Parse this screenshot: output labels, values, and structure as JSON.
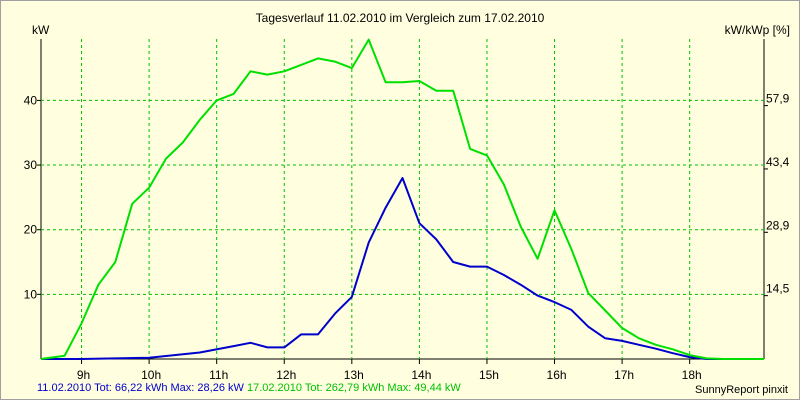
{
  "chart_data": {
    "type": "line",
    "title": "Tagesverlauf 11.02.2010 im Vergleich zum 17.02.2010",
    "ylabel_left": "kW",
    "ylabel_right": "kW/kWp [%]",
    "x_ticks": [
      "9h",
      "10h",
      "11h",
      "12h",
      "13h",
      "14h",
      "15h",
      "16h",
      "17h",
      "18h"
    ],
    "x_tick_hours": [
      9,
      10,
      11,
      12,
      13,
      14,
      15,
      16,
      17,
      18
    ],
    "xlim": [
      8.4,
      19.1
    ],
    "ylim": [
      0,
      49.5
    ],
    "y_ticks_left": [
      10,
      20,
      30,
      40
    ],
    "y_ticks_right": [
      {
        "value": 9.8,
        "label": "14,5"
      },
      {
        "value": 19.6,
        "label": "28,9"
      },
      {
        "value": 29.4,
        "label": "43,4"
      },
      {
        "value": 39.2,
        "label": "57,9"
      }
    ],
    "grid": true,
    "series": [
      {
        "name": "11.02.2010",
        "color": "#0000CC",
        "x": [
          8.4,
          9.0,
          10.0,
          10.75,
          11.25,
          11.5,
          11.75,
          12.0,
          12.25,
          12.5,
          12.75,
          13.0,
          13.25,
          13.5,
          13.75,
          14.0,
          14.25,
          14.5,
          14.75,
          15.0,
          15.25,
          15.5,
          15.75,
          16.0,
          16.25,
          16.5,
          16.75,
          17.0,
          17.25,
          17.5,
          17.75,
          18.0,
          18.25,
          18.5,
          18.75,
          19.1
        ],
        "y": [
          0,
          0,
          0.2,
          1.0,
          2.0,
          2.5,
          1.8,
          1.8,
          3.8,
          3.8,
          7.0,
          9.6,
          18.0,
          23.4,
          28.0,
          21.0,
          18.5,
          15.0,
          14.3,
          14.3,
          13.0,
          11.5,
          9.8,
          8.8,
          7.6,
          5.0,
          3.2,
          2.8,
          2.2,
          1.6,
          0.9,
          0.3,
          0,
          0,
          0,
          0
        ]
      },
      {
        "name": "17.02.2010",
        "color": "#00E000",
        "x": [
          8.4,
          8.75,
          9.0,
          9.25,
          9.5,
          9.75,
          10.0,
          10.25,
          10.5,
          10.75,
          11.0,
          11.25,
          11.5,
          11.75,
          12.0,
          12.25,
          12.5,
          12.75,
          13.0,
          13.25,
          13.5,
          13.75,
          14.0,
          14.25,
          14.5,
          14.75,
          15.0,
          15.25,
          15.5,
          15.75,
          16.0,
          16.25,
          16.5,
          16.75,
          17.0,
          17.25,
          17.5,
          17.75,
          18.0,
          18.25,
          18.5,
          18.75,
          19.1
        ],
        "y": [
          0,
          0.5,
          5.5,
          11.5,
          15.0,
          24.0,
          26.5,
          31.0,
          33.5,
          37.0,
          40.0,
          41.0,
          44.5,
          44.0,
          44.5,
          45.5,
          46.5,
          46.0,
          45.0,
          49.4,
          42.8,
          42.8,
          43.0,
          41.5,
          41.5,
          32.5,
          31.5,
          27.0,
          20.5,
          15.5,
          23.0,
          17.0,
          10.2,
          7.5,
          4.8,
          3.2,
          2.2,
          1.5,
          0.6,
          0.1,
          0,
          0,
          0
        ]
      }
    ]
  },
  "footer": {
    "series1_text": "11.02.2010 Tot: 66,22 kWh Max: 28,26 kW",
    "series2_text": "17.02.2010 Tot: 262,79 kWh Max: 49,44 kW",
    "credit": "SunnyReport pinxit"
  }
}
